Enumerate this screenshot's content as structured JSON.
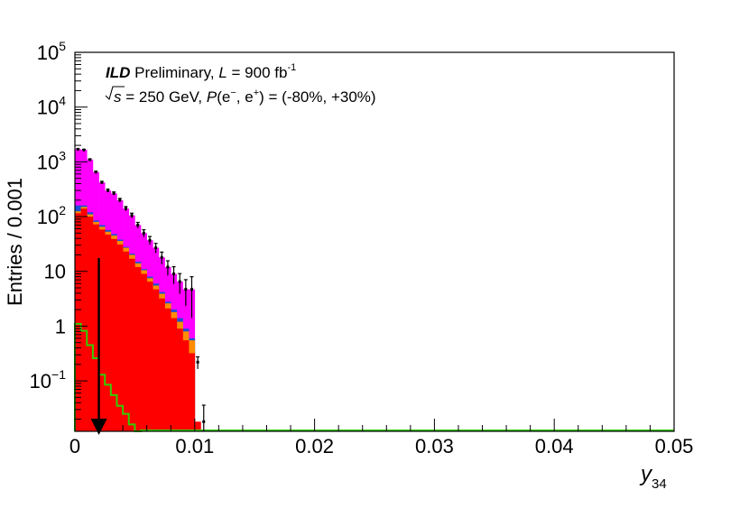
{
  "chart_data": {
    "type": "bar",
    "subtype": "stacked-histogram-log-y",
    "x_title_main": "y",
    "x_title_sub": "34",
    "y_title": "Entries / 0.001",
    "x_range": [
      0,
      0.05
    ],
    "y_range_log": [
      0.012,
      100000
    ],
    "y_scale": "log",
    "bin_width": 0.0005,
    "x_tick_labels": [
      "0",
      "0.01",
      "0.02",
      "0.03",
      "0.04",
      "0.05"
    ],
    "x_tick_values": [
      0,
      0.01,
      0.02,
      0.03,
      0.04,
      0.05
    ],
    "y_tick_labels": [
      {
        "value": 0.1,
        "base": "10",
        "exp": "−1"
      },
      {
        "value": 1,
        "base": "1",
        "exp": ""
      },
      {
        "value": 10,
        "base": "10",
        "exp": ""
      },
      {
        "value": 100,
        "base": "10",
        "exp": "2"
      },
      {
        "value": 1000,
        "base": "10",
        "exp": "3"
      },
      {
        "value": 10000,
        "base": "10",
        "exp": "4"
      },
      {
        "value": 100000,
        "base": "10",
        "exp": "5"
      }
    ],
    "annotation": {
      "experiment": "ILD",
      "status": " Preliminary, ",
      "lumi_symbol": "L",
      "lumi_text": " = 900 fb",
      "lumi_exp": "-1",
      "energy_text": " = 250 GeV, ",
      "pol_symbol": "P",
      "pol_args_open": "(e",
      "pol_em": "−",
      "pol_comma": ", e",
      "pol_ep": "+",
      "pol_values": ") = (-80%, +30%)",
      "sqrt_s": "s"
    },
    "cut_arrow_x": 0.002,
    "series": [
      {
        "role": "total_stack_top",
        "color": "#ff00ff",
        "values": [
          1700,
          1650,
          1100,
          650,
          420,
          300,
          265,
          200,
          140,
          105,
          70,
          50,
          37,
          27,
          18,
          12,
          9,
          6.5,
          4.7,
          4.7
        ]
      },
      {
        "role": "blue_component",
        "color": "#1f4fd6",
        "values": [
          160,
          160,
          120,
          85,
          70,
          57,
          48,
          38,
          28,
          21,
          15,
          11,
          8,
          6,
          4.2,
          2.8,
          2.0,
          1.4,
          0.9,
          0.6
        ]
      },
      {
        "role": "cyan_component",
        "color": "#00e5e5",
        "values": [
          28,
          26,
          60,
          55,
          48,
          42,
          36,
          29,
          22,
          17,
          12,
          9,
          6.5,
          4.8,
          3.4,
          2.3,
          1.6,
          1.1,
          0.7,
          0.5
        ]
      },
      {
        "role": "orange_component",
        "color": "#ff8c00",
        "values": [
          125,
          150,
          110,
          80,
          65,
          53,
          45,
          36,
          27,
          20,
          14,
          10.5,
          7.5,
          5.5,
          3.9,
          2.6,
          1.8,
          1.2,
          0.8,
          0.55
        ]
      },
      {
        "role": "signal_red",
        "color": "#ff0000",
        "values": [
          115,
          140,
          100,
          72,
          58,
          47,
          39,
          31,
          23,
          17,
          12,
          9,
          6.5,
          4.7,
          3.2,
          2.1,
          1.4,
          0.9,
          0.55,
          0.32,
          0.018
        ]
      },
      {
        "role": "green_outline",
        "color": "#33cc00",
        "values": [
          1.1,
          0.82,
          0.45,
          0.26,
          0.13,
          0.085,
          0.055,
          0.035,
          0.025,
          0.016,
          0.012
        ]
      }
    ],
    "errors": {
      "values": [
        1700,
        1650,
        1100,
        650,
        420,
        300,
        265,
        200,
        140,
        105,
        70,
        50,
        37,
        27,
        18,
        12,
        9,
        6.5,
        4.7,
        4.7,
        0.22,
        0.018
      ],
      "rel": [
        0.025,
        0.025,
        0.03,
        0.04,
        0.05,
        0.06,
        0.065,
        0.075,
        0.09,
        0.1,
        0.12,
        0.15,
        0.17,
        0.2,
        0.25,
        0.3,
        0.35,
        0.4,
        0.5,
        0.7,
        0.25,
        1.0
      ]
    },
    "grid": false,
    "legend": "none"
  }
}
